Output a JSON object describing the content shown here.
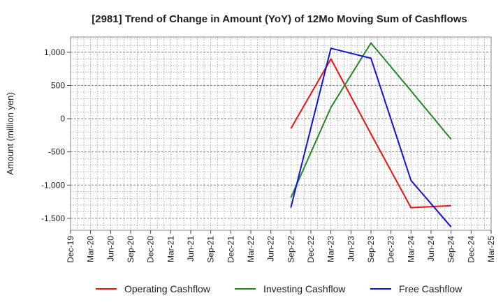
{
  "chart_data": {
    "type": "line",
    "title": "[2981]  Trend of Change in Amount (YoY) of 12Mo Moving Sum of Cashflows",
    "xlabel": "",
    "ylabel": "Amount (million yen)",
    "categories": [
      "Dec-19",
      "Mar-20",
      "Jun-20",
      "Sep-20",
      "Dec-20",
      "Mar-21",
      "Jun-21",
      "Sep-21",
      "Dec-21",
      "Mar-22",
      "Jun-22",
      "Sep-22",
      "Dec-22",
      "Mar-23",
      "Jun-23",
      "Sep-23",
      "Dec-23",
      "Mar-24",
      "Jun-24",
      "Sep-24",
      "Dec-24",
      "Mar-25"
    ],
    "ylim": [
      -1680,
      1230
    ],
    "yticks": [
      1000,
      500,
      0,
      -500,
      -1000,
      -1500
    ],
    "ytick_labels": [
      "1,000",
      "500",
      "0",
      "-500",
      "-1,000",
      "-1,500"
    ],
    "grid": true,
    "legend_position": "bottom",
    "series": [
      {
        "name": "Operating Cashflow",
        "color": "#ee1111",
        "values": [
          null,
          null,
          null,
          null,
          null,
          null,
          null,
          null,
          null,
          null,
          null,
          -150,
          null,
          900,
          null,
          -230,
          null,
          -1340,
          null,
          -1310,
          null,
          null
        ]
      },
      {
        "name": "Investing Cashflow",
        "color": "#228822",
        "values": [
          null,
          null,
          null,
          null,
          null,
          null,
          null,
          null,
          null,
          null,
          null,
          -1190,
          null,
          170,
          null,
          1140,
          null,
          420,
          null,
          -310,
          null,
          null
        ]
      },
      {
        "name": "Free Cashflow",
        "color": "#1111dd",
        "values": [
          null,
          null,
          null,
          null,
          null,
          null,
          null,
          null,
          null,
          null,
          null,
          -1340,
          null,
          1060,
          null,
          910,
          null,
          -930,
          null,
          -1630,
          null,
          null
        ]
      }
    ]
  }
}
